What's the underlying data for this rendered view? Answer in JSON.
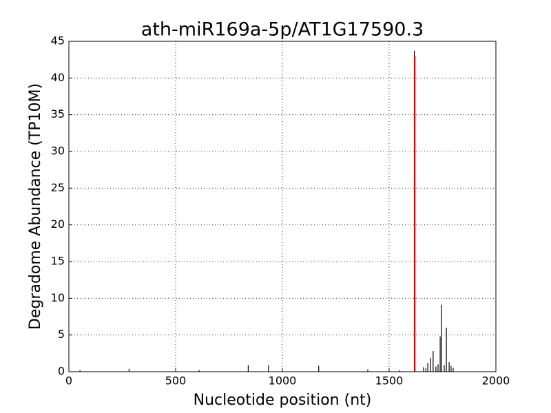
{
  "chart_data": {
    "type": "stem",
    "title": "ath-miR169a-5p/AT1G17590.3",
    "x_label": "Nucleotide position (nt)",
    "y_label": "Degradome Abundance (TP10M)",
    "x": [
      52,
      282,
      610,
      840,
      935,
      1170,
      1400,
      1550,
      1618,
      1661,
      1672,
      1681,
      1694,
      1706,
      1719,
      1729,
      1739,
      1745,
      1758,
      1768,
      1781,
      1790,
      1800
    ],
    "values": [
      0.2,
      0.4,
      0.2,
      0.9,
      0.9,
      0.8,
      0.3,
      0.2,
      43.7,
      0.6,
      0.5,
      1.2,
      1.9,
      2.8,
      0.7,
      1.0,
      4.8,
      9.1,
      0.9,
      6.0,
      1.3,
      0.8,
      0.5
    ],
    "color": "#000000",
    "highlight": {
      "x": 1620,
      "value": 43.0,
      "color": "#ff0000"
    },
    "xlim": [
      0,
      2000
    ],
    "xticks": [
      0,
      500,
      1000,
      1500,
      2000
    ],
    "ylim": [
      0,
      45
    ],
    "yticks": [
      0,
      5,
      10,
      15,
      20,
      25,
      30,
      35,
      40,
      45
    ],
    "grid": true
  }
}
